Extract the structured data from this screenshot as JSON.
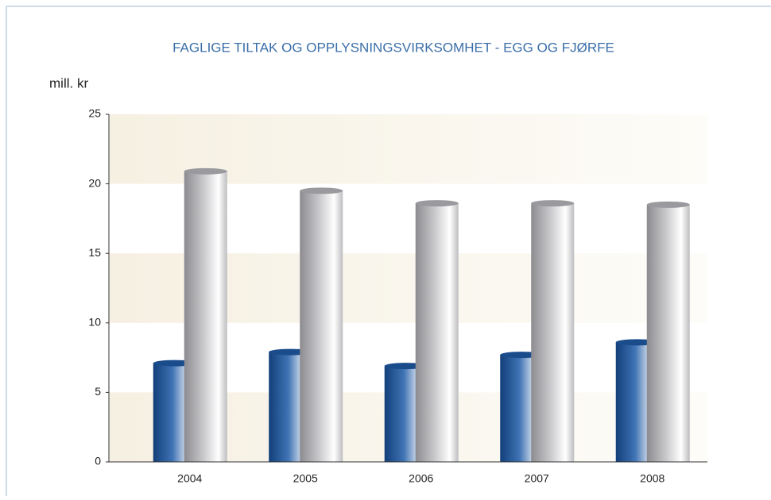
{
  "chart_data": {
    "type": "bar",
    "title": "FAGLIGE TILTAK OG OPPLYSNINGSVIRKSOMHET - EGG OG FJØRFE",
    "y_label": "mill. kr",
    "categories": [
      "2004",
      "2005",
      "2006",
      "2007",
      "2008"
    ],
    "series": [
      {
        "color": "#1f5a9e",
        "values": [
          7.1,
          7.9,
          6.9,
          7.7,
          8.6
        ]
      },
      {
        "color": "#b8b8bc",
        "values": [
          20.9,
          19.5,
          18.6,
          18.6,
          18.5
        ]
      }
    ],
    "ylim": [
      0,
      25
    ],
    "yticks": [
      0,
      5,
      10,
      15,
      20,
      25
    ]
  }
}
